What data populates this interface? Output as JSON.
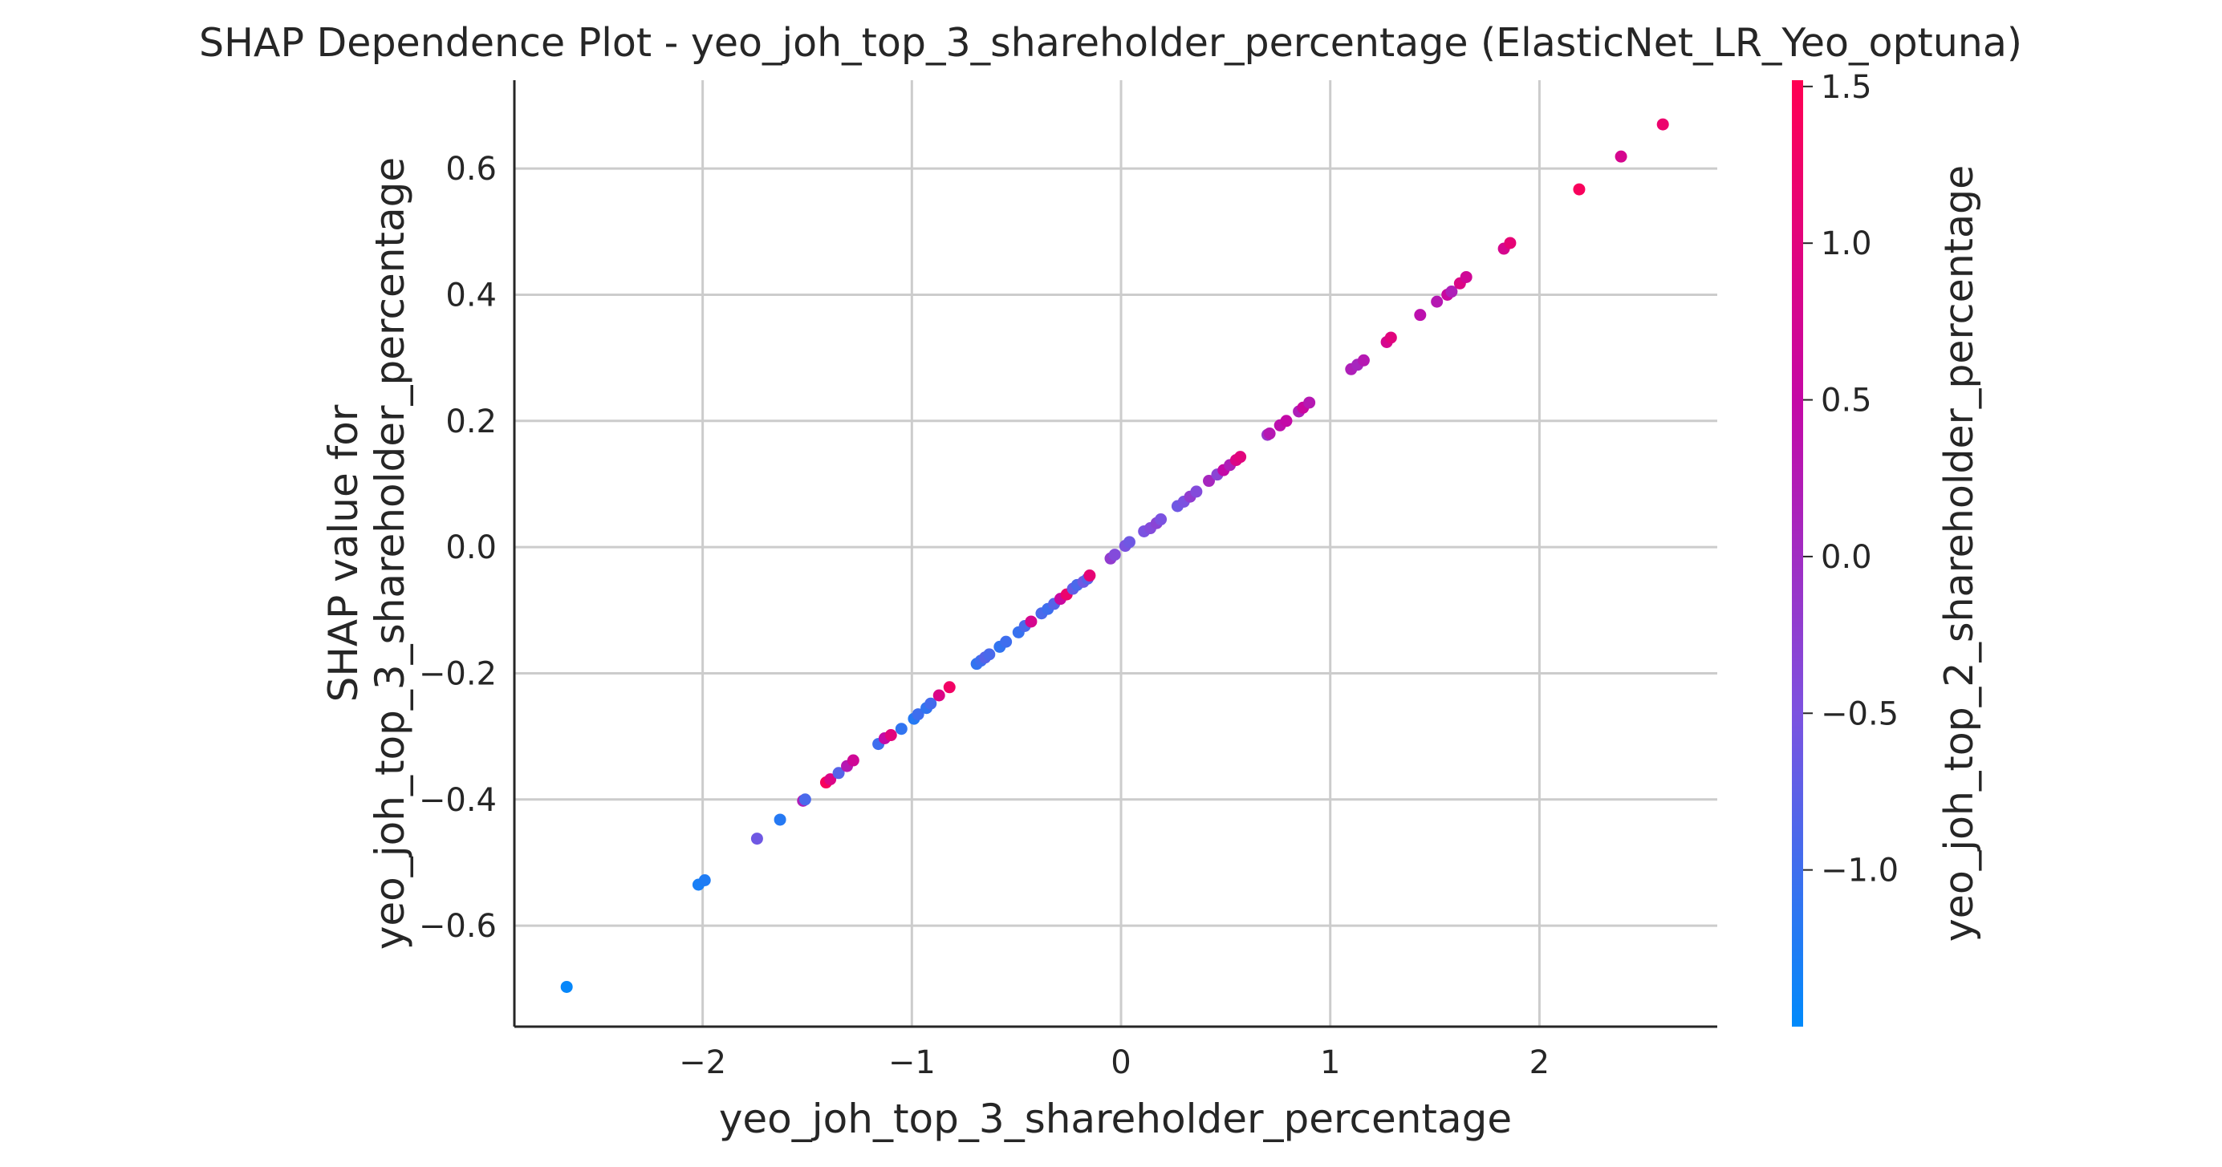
{
  "chart_data": {
    "type": "scatter",
    "title": "SHAP Dependence Plot - yeo_joh_top_3_shareholder_percentage (ElasticNet_LR_Yeo_optuna)",
    "xlabel": "yeo_joh_top_3_shareholder_percentage",
    "ylabel_line1": "SHAP value for",
    "ylabel_line2": "yeo_joh_top_3_shareholder_percentage",
    "xlim": [
      -2.9,
      2.85
    ],
    "ylim": [
      -0.76,
      0.74
    ],
    "xticks": [
      -2,
      -1,
      0,
      1,
      2
    ],
    "xtick_labels": [
      "−2",
      "−1",
      "0",
      "1",
      "2"
    ],
    "yticks": [
      -0.6,
      -0.4,
      -0.2,
      0.0,
      0.2,
      0.4,
      0.6
    ],
    "ytick_labels": [
      "−0.6",
      "−0.4",
      "−0.2",
      "0.0",
      "0.2",
      "0.4",
      "0.6"
    ],
    "grid": true,
    "colorbar": {
      "label": "yeo_joh_top_2_shareholder_percentage",
      "range": [
        -1.5,
        1.52
      ],
      "ticks": [
        -1.0,
        -0.5,
        0.0,
        0.5,
        1.0,
        1.5
      ],
      "tick_labels": [
        "−1.0",
        "−0.5",
        "0.0",
        "0.5",
        "1.0",
        "1.5"
      ],
      "colors": [
        "#008afb",
        "#7c52e0",
        "#c408a6",
        "#ff0052"
      ]
    },
    "points": [
      {
        "x": -2.65,
        "y": -0.697,
        "c": -1.45
      },
      {
        "x": -2.02,
        "y": -0.535,
        "c": -1.3
      },
      {
        "x": -1.99,
        "y": -0.528,
        "c": -1.25
      },
      {
        "x": -1.74,
        "y": -0.462,
        "c": -0.6
      },
      {
        "x": -1.63,
        "y": -0.432,
        "c": -1.2
      },
      {
        "x": -1.52,
        "y": -0.402,
        "c": 0.2
      },
      {
        "x": -1.51,
        "y": -0.4,
        "c": -0.9
      },
      {
        "x": -1.41,
        "y": -0.373,
        "c": 1.4
      },
      {
        "x": -1.39,
        "y": -0.368,
        "c": 0.9
      },
      {
        "x": -1.35,
        "y": -0.358,
        "c": -0.8
      },
      {
        "x": -1.31,
        "y": -0.347,
        "c": 0.3
      },
      {
        "x": -1.28,
        "y": -0.338,
        "c": 0.7
      },
      {
        "x": -1.16,
        "y": -0.312,
        "c": -1.0
      },
      {
        "x": -1.13,
        "y": -0.303,
        "c": 0.5
      },
      {
        "x": -1.1,
        "y": -0.298,
        "c": 1.0
      },
      {
        "x": -1.05,
        "y": -0.288,
        "c": -1.1
      },
      {
        "x": -0.99,
        "y": -0.272,
        "c": -1.2
      },
      {
        "x": -0.97,
        "y": -0.265,
        "c": -1.0
      },
      {
        "x": -0.93,
        "y": -0.255,
        "c": -1.1
      },
      {
        "x": -0.91,
        "y": -0.248,
        "c": -0.95
      },
      {
        "x": -0.87,
        "y": -0.235,
        "c": 0.9
      },
      {
        "x": -0.82,
        "y": -0.222,
        "c": 1.3
      },
      {
        "x": -0.69,
        "y": -0.185,
        "c": -1.1
      },
      {
        "x": -0.67,
        "y": -0.18,
        "c": -1.0
      },
      {
        "x": -0.65,
        "y": -0.175,
        "c": -0.8
      },
      {
        "x": -0.63,
        "y": -0.17,
        "c": -0.9
      },
      {
        "x": -0.58,
        "y": -0.158,
        "c": -1.1
      },
      {
        "x": -0.55,
        "y": -0.15,
        "c": -1.0
      },
      {
        "x": -0.49,
        "y": -0.135,
        "c": -1.05
      },
      {
        "x": -0.46,
        "y": -0.125,
        "c": -0.9
      },
      {
        "x": -0.43,
        "y": -0.118,
        "c": 0.8
      },
      {
        "x": -0.38,
        "y": -0.105,
        "c": -0.9
      },
      {
        "x": -0.35,
        "y": -0.098,
        "c": -1.0
      },
      {
        "x": -0.32,
        "y": -0.09,
        "c": -0.8
      },
      {
        "x": -0.29,
        "y": -0.082,
        "c": 0.6
      },
      {
        "x": -0.26,
        "y": -0.075,
        "c": 1.2
      },
      {
        "x": -0.23,
        "y": -0.066,
        "c": -0.7
      },
      {
        "x": -0.21,
        "y": -0.06,
        "c": -0.9
      },
      {
        "x": -0.18,
        "y": -0.055,
        "c": -0.6
      },
      {
        "x": -0.16,
        "y": -0.05,
        "c": -0.8
      },
      {
        "x": -0.15,
        "y": -0.045,
        "c": 1.1
      },
      {
        "x": -0.05,
        "y": -0.018,
        "c": -0.2
      },
      {
        "x": -0.03,
        "y": -0.012,
        "c": -0.4
      },
      {
        "x": 0.02,
        "y": 0.002,
        "c": -0.5
      },
      {
        "x": 0.04,
        "y": 0.008,
        "c": -0.6
      },
      {
        "x": 0.11,
        "y": 0.025,
        "c": -0.5
      },
      {
        "x": 0.14,
        "y": 0.03,
        "c": -0.4
      },
      {
        "x": 0.17,
        "y": 0.038,
        "c": -0.3
      },
      {
        "x": 0.19,
        "y": 0.044,
        "c": -0.5
      },
      {
        "x": 0.27,
        "y": 0.065,
        "c": -0.6
      },
      {
        "x": 0.3,
        "y": 0.072,
        "c": -0.5
      },
      {
        "x": 0.33,
        "y": 0.08,
        "c": -0.2
      },
      {
        "x": 0.36,
        "y": 0.088,
        "c": -0.4
      },
      {
        "x": 0.42,
        "y": 0.105,
        "c": 0.1
      },
      {
        "x": 0.46,
        "y": 0.115,
        "c": -0.3
      },
      {
        "x": 0.49,
        "y": 0.122,
        "c": 0.5
      },
      {
        "x": 0.52,
        "y": 0.13,
        "c": 0.2
      },
      {
        "x": 0.55,
        "y": 0.138,
        "c": 0.9
      },
      {
        "x": 0.57,
        "y": 0.143,
        "c": 1.0
      },
      {
        "x": 0.7,
        "y": 0.178,
        "c": -0.1
      },
      {
        "x": 0.71,
        "y": 0.18,
        "c": 0.3
      },
      {
        "x": 0.76,
        "y": 0.193,
        "c": 0.4
      },
      {
        "x": 0.79,
        "y": 0.2,
        "c": 0.5
      },
      {
        "x": 0.85,
        "y": 0.215,
        "c": 0.2
      },
      {
        "x": 0.87,
        "y": 0.221,
        "c": 0.6
      },
      {
        "x": 0.9,
        "y": 0.229,
        "c": 0.3
      },
      {
        "x": 1.1,
        "y": 0.282,
        "c": 0.2
      },
      {
        "x": 1.13,
        "y": 0.289,
        "c": 0.1
      },
      {
        "x": 1.16,
        "y": 0.296,
        "c": 0.3
      },
      {
        "x": 1.27,
        "y": 0.325,
        "c": 0.8
      },
      {
        "x": 1.29,
        "y": 0.332,
        "c": 1.0
      },
      {
        "x": 1.43,
        "y": 0.368,
        "c": 0.4
      },
      {
        "x": 1.51,
        "y": 0.389,
        "c": 0.3
      },
      {
        "x": 1.56,
        "y": 0.4,
        "c": 0.6
      },
      {
        "x": 1.58,
        "y": 0.405,
        "c": 0.2
      },
      {
        "x": 1.62,
        "y": 0.418,
        "c": 0.9
      },
      {
        "x": 1.65,
        "y": 0.428,
        "c": 0.7
      },
      {
        "x": 1.83,
        "y": 0.473,
        "c": 0.8
      },
      {
        "x": 1.86,
        "y": 0.482,
        "c": 1.1
      },
      {
        "x": 2.19,
        "y": 0.567,
        "c": 1.4
      },
      {
        "x": 2.39,
        "y": 0.619,
        "c": 0.8
      },
      {
        "x": 2.59,
        "y": 0.67,
        "c": 1.2
      }
    ]
  }
}
